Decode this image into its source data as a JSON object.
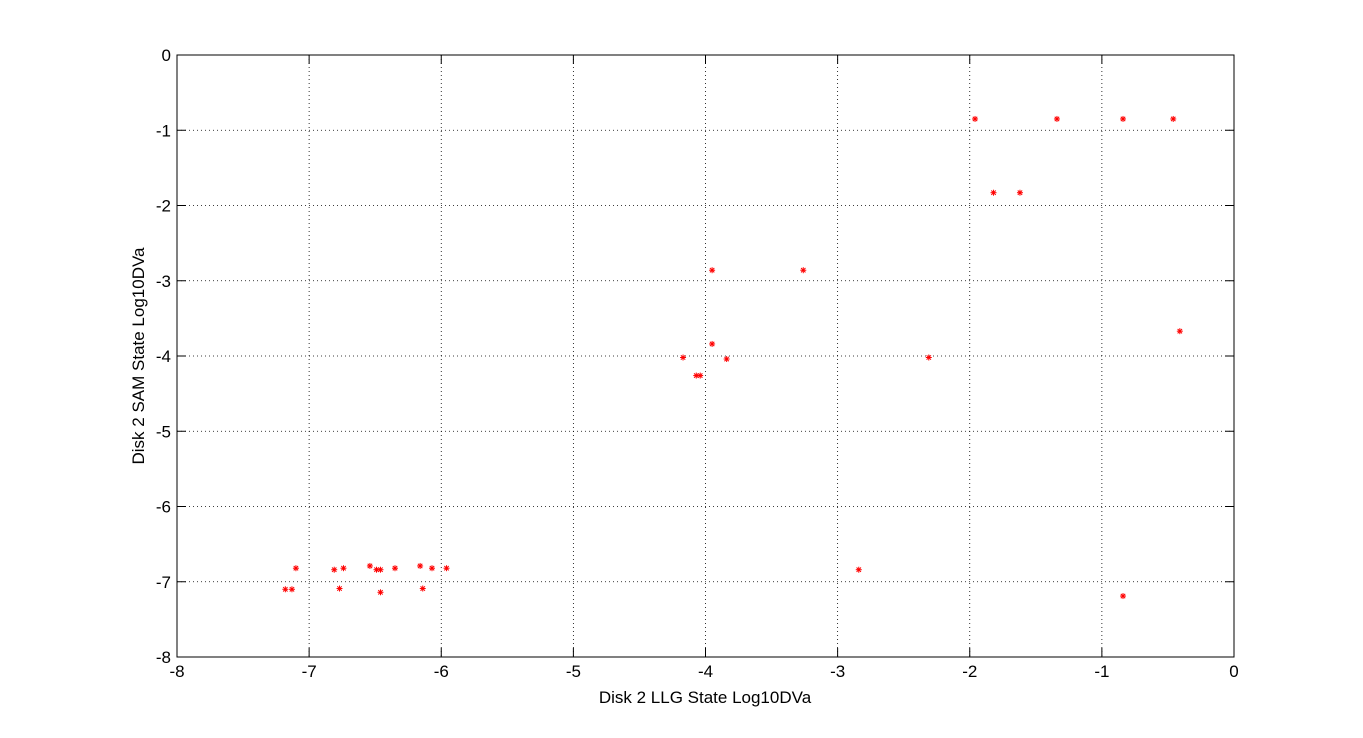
{
  "chart_data": {
    "type": "scatter",
    "xlabel": "Disk 2 LLG State Log10DVa",
    "ylabel": "Disk 2 SAM State Log10DVa",
    "xlim": [
      -8,
      0
    ],
    "ylim": [
      -8,
      0
    ],
    "xticks": [
      "-8",
      "-7",
      "-6",
      "-5",
      "-4",
      "-3",
      "-2",
      "-1",
      "0"
    ],
    "yticks": [
      "0",
      "-1",
      "-2",
      "-3",
      "-4",
      "-5",
      "-6",
      "-7",
      "-8"
    ],
    "grid": true,
    "marker": "*",
    "marker_color": "#ff0000",
    "series": [
      {
        "points": [
          [
            -7.18,
            -7.1
          ],
          [
            -7.13,
            -7.1
          ],
          [
            -7.1,
            -6.82
          ],
          [
            -6.81,
            -6.84
          ],
          [
            -6.77,
            -7.09
          ],
          [
            -6.74,
            -6.82
          ],
          [
            -6.54,
            -6.79
          ],
          [
            -6.49,
            -6.84
          ],
          [
            -6.46,
            -6.84
          ],
          [
            -6.46,
            -7.14
          ],
          [
            -6.35,
            -6.82
          ],
          [
            -6.16,
            -6.79
          ],
          [
            -6.14,
            -7.09
          ],
          [
            -6.07,
            -6.82
          ],
          [
            -5.96,
            -6.82
          ],
          [
            -4.17,
            -4.02
          ],
          [
            -4.07,
            -4.26
          ],
          [
            -4.04,
            -4.26
          ],
          [
            -3.95,
            -2.86
          ],
          [
            -3.95,
            -3.84
          ],
          [
            -3.84,
            -4.04
          ],
          [
            -3.26,
            -2.86
          ],
          [
            -2.84,
            -6.84
          ],
          [
            -2.31,
            -4.02
          ],
          [
            -1.96,
            -0.85
          ],
          [
            -1.82,
            -1.83
          ],
          [
            -1.62,
            -1.83
          ],
          [
            -1.34,
            -0.85
          ],
          [
            -0.84,
            -0.85
          ],
          [
            -0.84,
            -7.19
          ],
          [
            -0.46,
            -0.85
          ],
          [
            -0.41,
            -3.67
          ]
        ]
      }
    ]
  }
}
